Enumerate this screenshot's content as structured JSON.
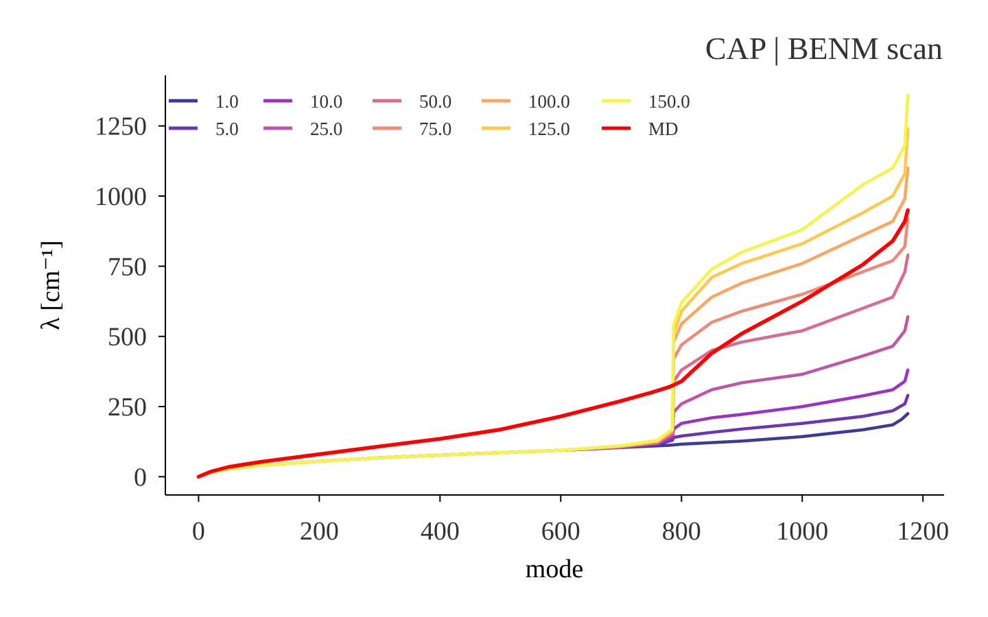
{
  "chart_data": {
    "type": "line",
    "title": "CAP | BENM scan",
    "xlabel": "mode",
    "ylabel": "λ [cm⁻¹]",
    "xlim": [
      -55,
      1235
    ],
    "ylim": [
      -65,
      1430
    ],
    "xticks": [
      0,
      200,
      400,
      600,
      800,
      1000,
      1200
    ],
    "yticks": [
      0,
      250,
      500,
      750,
      1000,
      1250
    ],
    "grid": false,
    "legend_position": "top",
    "series": [
      {
        "name": "1.0",
        "color": "#3b3b9a",
        "x": [
          0,
          20,
          50,
          100,
          200,
          300,
          400,
          500,
          600,
          700,
          780,
          800,
          900,
          1000,
          1050,
          1100,
          1150,
          1165,
          1175
        ],
        "y": [
          0,
          15,
          27,
          40,
          55,
          68,
          77,
          86,
          94,
          104,
          112,
          116,
          127,
          143,
          155,
          167,
          185,
          205,
          225
        ]
      },
      {
        "name": "5.0",
        "color": "#6b35b3",
        "x": [
          0,
          20,
          50,
          100,
          200,
          300,
          400,
          500,
          600,
          700,
          760,
          785,
          787,
          800,
          850,
          900,
          1000,
          1100,
          1150,
          1170,
          1175
        ],
        "y": [
          0,
          15,
          27,
          40,
          55,
          68,
          77,
          86,
          94,
          104,
          115,
          130,
          140,
          145,
          158,
          170,
          190,
          215,
          235,
          260,
          290
        ]
      },
      {
        "name": "10.0",
        "color": "#9b32c0",
        "x": [
          0,
          20,
          50,
          100,
          200,
          300,
          400,
          500,
          600,
          700,
          760,
          785,
          787,
          800,
          850,
          900,
          1000,
          1100,
          1150,
          1170,
          1175
        ],
        "y": [
          0,
          15,
          27,
          40,
          55,
          68,
          77,
          86,
          94,
          105,
          118,
          140,
          170,
          190,
          210,
          222,
          250,
          288,
          310,
          340,
          380
        ]
      },
      {
        "name": "25.0",
        "color": "#bf55a8",
        "x": [
          0,
          20,
          50,
          100,
          200,
          300,
          400,
          500,
          600,
          700,
          760,
          785,
          787,
          800,
          850,
          900,
          1000,
          1100,
          1150,
          1170,
          1175
        ],
        "y": [
          0,
          15,
          27,
          40,
          55,
          68,
          77,
          86,
          94,
          106,
          120,
          150,
          230,
          260,
          310,
          335,
          365,
          430,
          465,
          520,
          570
        ]
      },
      {
        "name": "50.0",
        "color": "#d96b8c",
        "x": [
          0,
          20,
          50,
          100,
          200,
          300,
          400,
          500,
          600,
          700,
          760,
          785,
          787,
          800,
          850,
          900,
          1000,
          1100,
          1150,
          1170,
          1175
        ],
        "y": [
          0,
          15,
          27,
          40,
          55,
          68,
          77,
          86,
          94,
          107,
          122,
          155,
          340,
          380,
          450,
          480,
          520,
          600,
          640,
          730,
          790
        ]
      },
      {
        "name": "75.0",
        "color": "#ed8a78",
        "x": [
          0,
          20,
          50,
          100,
          200,
          300,
          400,
          500,
          600,
          700,
          760,
          785,
          787,
          800,
          850,
          900,
          1000,
          1100,
          1150,
          1170,
          1175
        ],
        "y": [
          0,
          15,
          27,
          40,
          55,
          68,
          77,
          86,
          94,
          108,
          124,
          160,
          420,
          470,
          550,
          590,
          650,
          730,
          770,
          820,
          920
        ]
      },
      {
        "name": "100.0",
        "color": "#f9a864",
        "x": [
          0,
          20,
          50,
          100,
          200,
          300,
          400,
          500,
          600,
          700,
          760,
          785,
          787,
          800,
          850,
          900,
          1000,
          1100,
          1150,
          1170,
          1175
        ],
        "y": [
          0,
          15,
          27,
          40,
          55,
          68,
          77,
          86,
          94,
          109,
          126,
          165,
          480,
          545,
          640,
          690,
          760,
          860,
          910,
          990,
          1100
        ]
      },
      {
        "name": "125.0",
        "color": "#fcc94f",
        "x": [
          0,
          20,
          50,
          100,
          200,
          300,
          400,
          500,
          600,
          700,
          760,
          785,
          787,
          800,
          850,
          900,
          1000,
          1100,
          1150,
          1170,
          1175
        ],
        "y": [
          0,
          15,
          27,
          40,
          55,
          68,
          77,
          86,
          94,
          110,
          128,
          168,
          510,
          590,
          710,
          760,
          830,
          940,
          1000,
          1080,
          1240
        ]
      },
      {
        "name": "150.0",
        "color": "#f4f44d",
        "x": [
          0,
          20,
          50,
          100,
          200,
          300,
          400,
          500,
          600,
          700,
          760,
          785,
          787,
          800,
          850,
          900,
          1000,
          1100,
          1150,
          1170,
          1175
        ],
        "y": [
          0,
          15,
          27,
          40,
          55,
          68,
          77,
          86,
          94,
          111,
          130,
          170,
          540,
          620,
          740,
          800,
          880,
          1040,
          1100,
          1180,
          1360
        ]
      },
      {
        "name": "MD",
        "color": "#ff0000",
        "x": [
          0,
          20,
          50,
          100,
          200,
          300,
          400,
          500,
          600,
          700,
          750,
          780,
          800,
          850,
          900,
          1000,
          1100,
          1150,
          1170,
          1175
        ],
        "y": [
          0,
          18,
          35,
          52,
          80,
          108,
          135,
          168,
          215,
          270,
          300,
          320,
          340,
          440,
          510,
          625,
          755,
          840,
          910,
          950
        ]
      }
    ]
  }
}
